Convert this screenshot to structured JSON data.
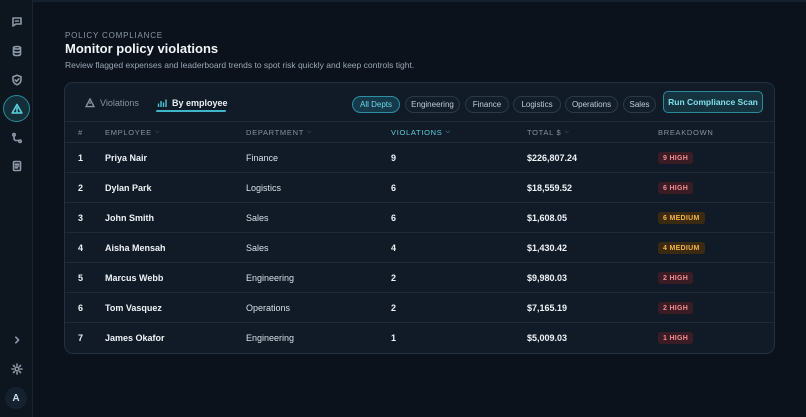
{
  "sidebar": {
    "items": [
      {
        "icon": "chat-icon"
      },
      {
        "icon": "database-icon"
      },
      {
        "icon": "shield-check-icon"
      },
      {
        "icon": "warning-triangle-icon",
        "active": true
      },
      {
        "icon": "route-icon"
      },
      {
        "icon": "document-icon"
      }
    ],
    "bottom": [
      {
        "icon": "chevron-right-icon"
      },
      {
        "icon": "sun-icon"
      }
    ],
    "avatar_initial": "A"
  },
  "header": {
    "eyebrow": "POLICY COMPLIANCE",
    "title": "Monitor policy violations",
    "subtitle": "Review flagged expenses and leaderboard trends to spot risk quickly and keep controls tight."
  },
  "tabs": [
    {
      "label": "Violations",
      "icon": "warning-triangle-icon",
      "active": false
    },
    {
      "label": "By employee",
      "icon": "bar-chart-icon",
      "active": true
    }
  ],
  "filters": [
    "All Depts",
    "Engineering",
    "Finance",
    "Logistics",
    "Operations",
    "Sales"
  ],
  "active_filter": "All Depts",
  "run_button": "Run Compliance Scan",
  "table": {
    "columns": {
      "index": "#",
      "employee": "EMPLOYEE",
      "department": "DEPARTMENT",
      "violations": "VIOLATIONS",
      "total": "TOTAL $",
      "breakdown": "BREAKDOWN"
    },
    "rows": [
      {
        "index": "1",
        "employee": "Priya Nair",
        "department": "Finance",
        "violations": "9",
        "total": "$226,807.24",
        "breakdown": "9 HIGH",
        "severity": "high"
      },
      {
        "index": "2",
        "employee": "Dylan Park",
        "department": "Logistics",
        "violations": "6",
        "total": "$18,559.52",
        "breakdown": "6 HIGH",
        "severity": "high"
      },
      {
        "index": "3",
        "employee": "John Smith",
        "department": "Sales",
        "violations": "6",
        "total": "$1,608.05",
        "breakdown": "6 MEDIUM",
        "severity": "medium"
      },
      {
        "index": "4",
        "employee": "Aisha Mensah",
        "department": "Sales",
        "violations": "4",
        "total": "$1,430.42",
        "breakdown": "4 MEDIUM",
        "severity": "medium"
      },
      {
        "index": "5",
        "employee": "Marcus Webb",
        "department": "Engineering",
        "violations": "2",
        "total": "$9,980.03",
        "breakdown": "2 HIGH",
        "severity": "high"
      },
      {
        "index": "6",
        "employee": "Tom Vasquez",
        "department": "Operations",
        "violations": "2",
        "total": "$7,165.19",
        "breakdown": "2 HIGH",
        "severity": "high"
      },
      {
        "index": "7",
        "employee": "James Okafor",
        "department": "Engineering",
        "violations": "1",
        "total": "$5,009.03",
        "breakdown": "1 HIGH",
        "severity": "high"
      }
    ]
  },
  "colors": {
    "accent": "#3fb6c9",
    "high": "#f08a8f",
    "medium": "#f2b24a",
    "background": "#0b121c",
    "card": "#111b27"
  }
}
